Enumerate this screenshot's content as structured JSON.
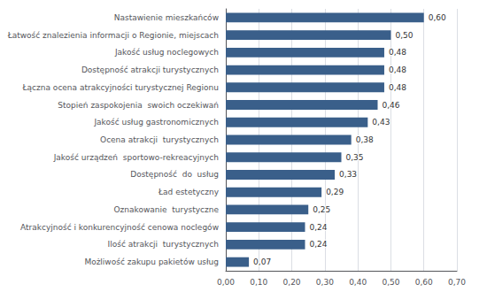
{
  "chart_data": {
    "type": "bar",
    "orientation": "horizontal",
    "categories": [
      "Nastawienie mieszkańców",
      "Łatwość znalezienia informacji o Regionie, miejscach",
      "Jakość usług noclegowych",
      "Dostępność atrakcji turystycznych",
      "Łączna ocena atrakcyjności turystycznej Regionu",
      "Stopień zaspokojenia  swoich oczekiwań",
      "Jakość usług gastronomicznych",
      "Ocena atrakcji  turystycznych",
      "Jakość urządzeń  sportowo-rekreacyjnych",
      "Dostępność  do  usług",
      "Ład estetyczny",
      "Oznakowanie  turystyczne",
      "Atrakcyjność i konkurencyjność cenowa noclegów",
      "Ilość atrakcji  turystycznych",
      "Możliwość zakupu pakietów usług"
    ],
    "values": [
      0.6,
      0.5,
      0.48,
      0.48,
      0.48,
      0.46,
      0.43,
      0.38,
      0.35,
      0.33,
      0.29,
      0.25,
      0.24,
      0.24,
      0.07
    ],
    "value_labels": [
      "0,60",
      "0,50",
      "0,48",
      "0,48",
      "0,48",
      "0,46",
      "0,43",
      "0,38",
      "0,35",
      "0,33",
      "0,29",
      "0,25",
      "0,24",
      "0,24",
      "0,07"
    ],
    "data_labels": true,
    "color": "#3A5F8A",
    "xlim": [
      0,
      0.7
    ],
    "xticks": [
      {
        "value": 0.0,
        "label": "0,00"
      },
      {
        "value": 0.1,
        "label": "0,10"
      },
      {
        "value": 0.2,
        "label": "0,20"
      },
      {
        "value": 0.3,
        "label": "0,30"
      },
      {
        "value": 0.4,
        "label": "0,40"
      },
      {
        "value": 0.5,
        "label": "0,50"
      },
      {
        "value": 0.6,
        "label": "0,60"
      },
      {
        "value": 0.7,
        "label": "0,70"
      }
    ],
    "grid": true
  }
}
